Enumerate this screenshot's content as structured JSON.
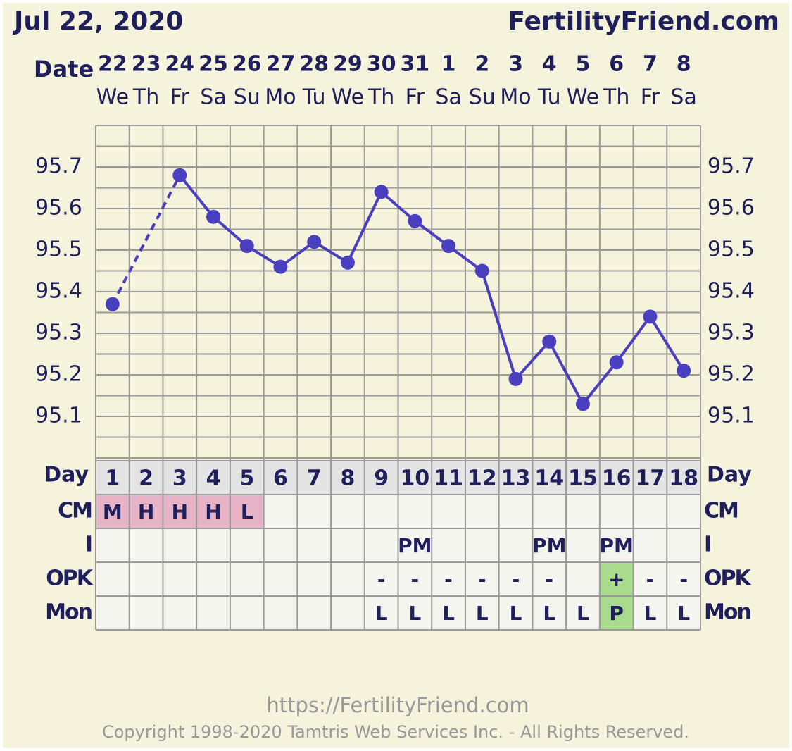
{
  "chart_data": {
    "type": "line",
    "title": "Jul 22, 2020",
    "site": "FertilityFriend.com",
    "date_label": "Date",
    "categories": [
      "22",
      "23",
      "24",
      "25",
      "26",
      "27",
      "28",
      "29",
      "30",
      "31",
      "1",
      "2",
      "3",
      "4",
      "5",
      "6",
      "7",
      "8"
    ],
    "weekdays": [
      "We",
      "Th",
      "Fr",
      "Sa",
      "Su",
      "Mo",
      "Tu",
      "We",
      "Th",
      "Fr",
      "Sa",
      "Su",
      "Mo",
      "Tu",
      "We",
      "Th",
      "Fr",
      "Sa"
    ],
    "values": [
      95.37,
      null,
      95.68,
      95.58,
      95.51,
      95.46,
      95.52,
      95.47,
      95.64,
      95.57,
      95.51,
      95.45,
      95.19,
      95.28,
      95.13,
      95.23,
      95.34,
      95.21
    ],
    "color": "#4a3fbf",
    "ylim": [
      95.0,
      95.8
    ],
    "yticks": [
      95.1,
      95.2,
      95.3,
      95.4,
      95.5,
      95.6,
      95.7
    ],
    "ygrid": [
      95.0,
      95.05,
      95.1,
      95.15,
      95.2,
      95.25,
      95.3,
      95.35,
      95.4,
      95.45,
      95.5,
      95.55,
      95.6,
      95.65,
      95.7,
      95.75,
      95.8
    ],
    "day_label": "Day",
    "days": [
      1,
      2,
      3,
      4,
      5,
      6,
      7,
      8,
      9,
      10,
      11,
      12,
      13,
      14,
      15,
      16,
      17,
      18
    ],
    "rows": [
      {
        "label": "CM",
        "cells": [
          "M",
          "H",
          "H",
          "H",
          "L",
          null,
          null,
          null,
          null,
          null,
          null,
          null,
          null,
          null,
          null,
          null,
          null,
          null
        ],
        "cell_colors": [
          "#e6b4c6",
          "#e6b4c6",
          "#e6b4c6",
          "#e6b4c6",
          "#e6b4c6",
          null,
          null,
          null,
          null,
          null,
          null,
          null,
          null,
          null,
          null,
          null,
          null,
          null
        ]
      },
      {
        "label": "I",
        "cells": [
          null,
          null,
          null,
          null,
          null,
          null,
          null,
          null,
          null,
          "PM",
          null,
          null,
          null,
          "PM",
          null,
          "PM",
          null,
          null
        ],
        "cell_colors": [
          null,
          null,
          null,
          null,
          null,
          null,
          null,
          null,
          null,
          null,
          null,
          null,
          null,
          null,
          null,
          null,
          null,
          null
        ]
      },
      {
        "label": "OPK",
        "cells": [
          null,
          null,
          null,
          null,
          null,
          null,
          null,
          null,
          "-",
          "-",
          "-",
          "-",
          "-",
          "-",
          null,
          "+",
          "-",
          "-"
        ],
        "cell_colors": [
          null,
          null,
          null,
          null,
          null,
          null,
          null,
          null,
          null,
          null,
          null,
          null,
          null,
          null,
          null,
          "#a8dc8c",
          null,
          null
        ]
      },
      {
        "label": "Mon",
        "cells": [
          null,
          null,
          null,
          null,
          null,
          null,
          null,
          null,
          "L",
          "L",
          "L",
          "L",
          "L",
          "L",
          "L",
          "P",
          "L",
          "L"
        ],
        "cell_colors": [
          null,
          null,
          null,
          null,
          null,
          null,
          null,
          null,
          null,
          null,
          null,
          null,
          null,
          null,
          null,
          "#a8dc8c",
          null,
          null
        ]
      }
    ],
    "footer_url": "https://FertilityFriend.com",
    "copyright": "Copyright 1998-2020 Tamtris Web Services Inc. - All Rights Reserved."
  }
}
